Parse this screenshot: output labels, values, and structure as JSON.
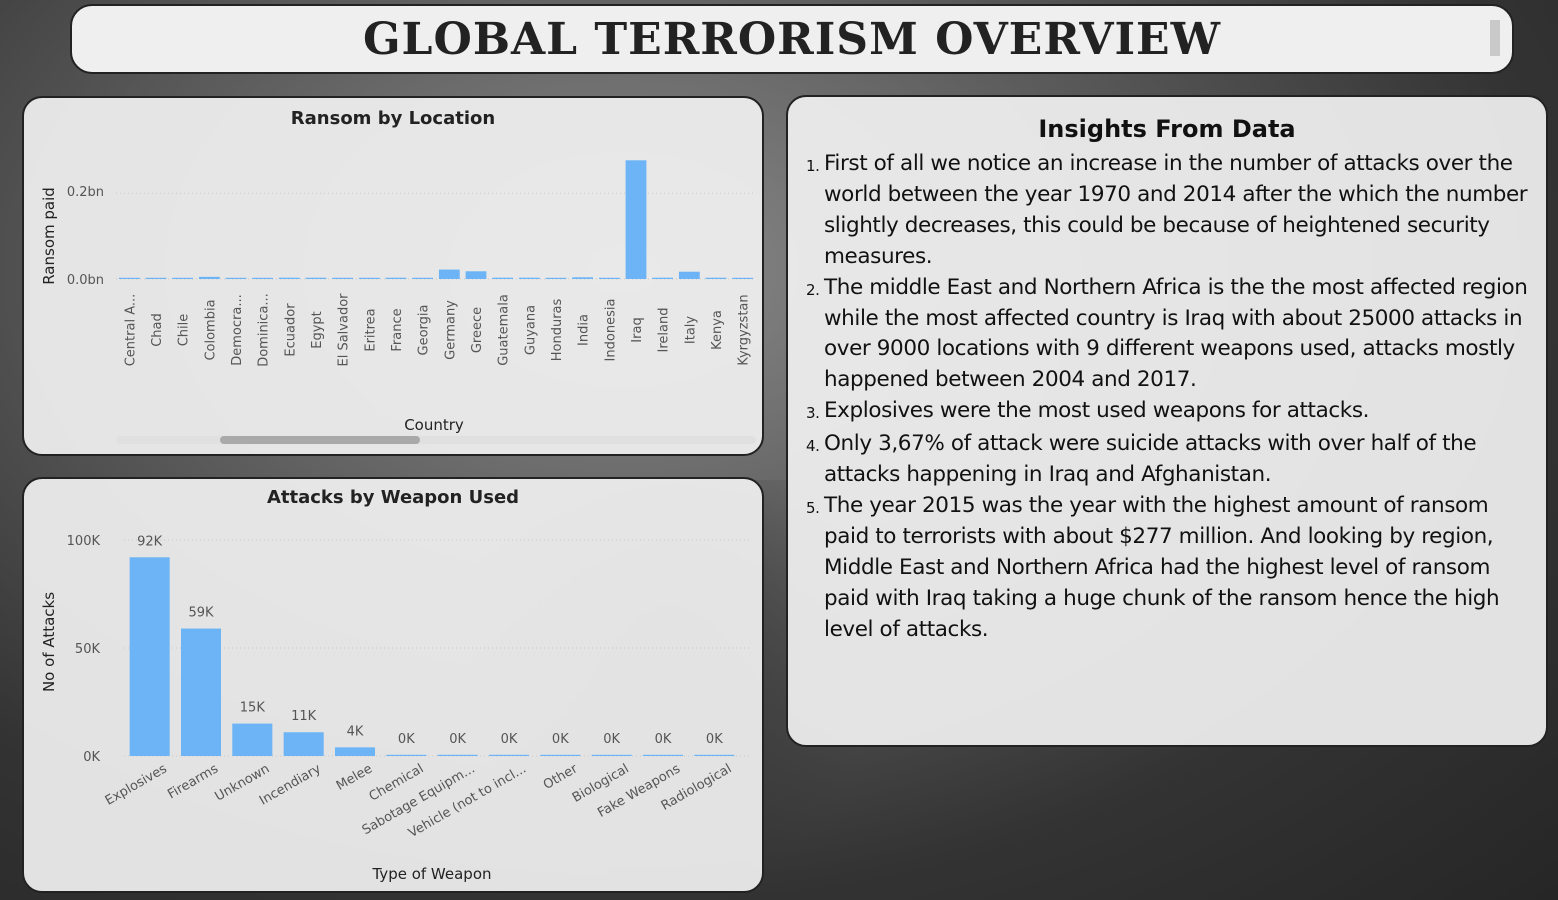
{
  "header": {
    "title": "GLOBAL TERRORISM OVERVIEW"
  },
  "ransom_chart": {
    "title": "Ransom by Location",
    "x_axis_label": "Country",
    "y_axis_label": "Ransom paid",
    "y_ticks": [
      "0.2bn",
      "0.0bn"
    ],
    "bar_color": "#6cb4f5"
  },
  "weapon_chart": {
    "title": "Attacks by Weapon Used",
    "x_axis_label": "Type of Weapon",
    "y_axis_label": "No of Attacks",
    "y_ticks": [
      "100K",
      "50K",
      "0K"
    ],
    "bar_color": "#6cb4f5"
  },
  "chart_data": [
    {
      "type": "bar",
      "title": "Ransom by Location",
      "xlabel": "Country",
      "ylabel": "Ransom paid",
      "ylim": [
        0,
        0.28
      ],
      "unit": "bn",
      "categories": [
        "Central A...",
        "Chad",
        "Chile",
        "Colombia",
        "Democra...",
        "Dominica...",
        "Ecuador",
        "Egypt",
        "El Salvador",
        "Eritrea",
        "France",
        "Georgia",
        "Germany",
        "Greece",
        "Guatemala",
        "Guyana",
        "Honduras",
        "India",
        "Indonesia",
        "Iraq",
        "Ireland",
        "Italy",
        "Kenya",
        "Kyrgyzstan"
      ],
      "values": [
        0.001,
        0.001,
        0,
        0.005,
        0.001,
        0,
        0.003,
        0.003,
        0,
        0.001,
        0.003,
        0.002,
        0.022,
        0.018,
        0.003,
        0.003,
        0,
        0.004,
        0.002,
        0.277,
        0.003,
        0.017,
        0.003,
        0.002
      ]
    },
    {
      "type": "bar",
      "title": "Attacks by Weapon Used",
      "xlabel": "Type of Weapon",
      "ylabel": "No of Attacks",
      "ylim": [
        0,
        100000
      ],
      "categories": [
        "Explosives",
        "Firearms",
        "Unknown",
        "Incendiary",
        "Melee",
        "Chemical",
        "Sabotage Equipm...",
        "Vehicle (not to incl...",
        "Other",
        "Biological",
        "Fake Weapons",
        "Radiological"
      ],
      "values": [
        92000,
        59000,
        15000,
        11000,
        4000,
        300,
        200,
        150,
        100,
        40,
        30,
        15
      ],
      "data_labels": [
        "92K",
        "59K",
        "15K",
        "11K",
        "4K",
        "0K",
        "0K",
        "0K",
        "0K",
        "0K",
        "0K",
        "0K"
      ]
    }
  ],
  "insights": {
    "title": "Insights From Data",
    "items": [
      {
        "num": "1.",
        "text": "First of all we notice an increase in the number of attacks over the world between the year 1970 and 2014 after the which the number slightly decreases, this could be because of heightened security measures."
      },
      {
        "num": "2.",
        "text": "The middle East and Northern Africa is the the most affected region while the most affected country is Iraq with about 25000 attacks in over 9000 locations with 9 different weapons used, attacks mostly happened between 2004 and 2017."
      },
      {
        "num": "3.",
        "text": "Explosives were the most used weapons for attacks."
      },
      {
        "num": "4.",
        "text": "Only 3,67% of attack were suicide attacks with over half of the attacks happening in Iraq and Afghanistan."
      },
      {
        "num": "5.",
        "text": "The year 2015 was the year with the highest amount of ransom paid to terrorists with about $277 million. And looking by region, Middle East and Northern Africa had the highest level of ransom paid with Iraq taking a huge chunk of the ransom hence the high level of attacks."
      }
    ]
  }
}
